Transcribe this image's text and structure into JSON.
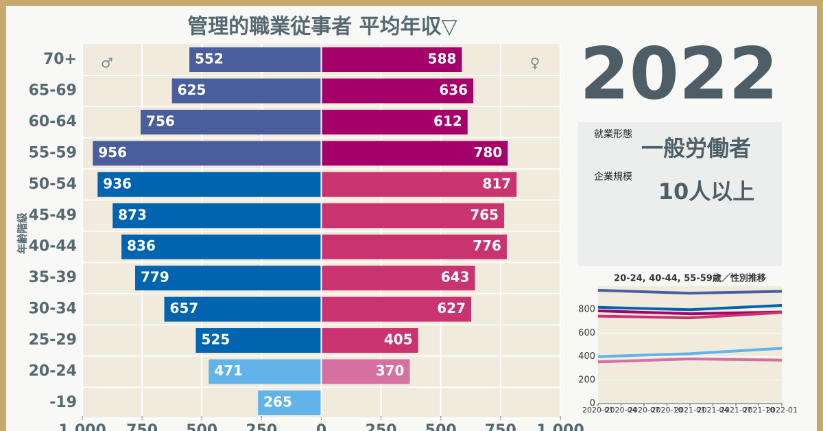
{
  "chart_data": [
    {
      "type": "bar",
      "title": "管理的職業従事者 平均年収▽",
      "ylabel": "年齢階級",
      "male_symbol": "♂",
      "female_symbol": "♀",
      "categories": [
        "70+",
        "65-69",
        "60-64",
        "55-59",
        "50-54",
        "45-49",
        "40-44",
        "35-39",
        "30-34",
        "25-29",
        "20-24",
        "-19"
      ],
      "series": [
        {
          "values": [
            -552,
            -625,
            -756,
            -956,
            -936,
            -873,
            -836,
            -779,
            -657,
            -525,
            -471,
            -265
          ],
          "value_labels": [
            "552",
            "625",
            "756",
            "956",
            "936",
            "873",
            "836",
            "779",
            "657",
            "525",
            "471",
            "265"
          ],
          "colors": [
            "#4a5e9e",
            "#4a5e9e",
            "#4a5e9e",
            "#4a5e9e",
            "#0064b0",
            "#0064b0",
            "#0064b0",
            "#0064b0",
            "#0064b0",
            "#0064b0",
            "#62b3ea",
            "#62b3ea"
          ]
        },
        {
          "values": [
            588,
            636,
            612,
            780,
            817,
            765,
            776,
            643,
            627,
            405,
            370,
            null
          ],
          "colors": [
            "#a5006a",
            "#a5006a",
            "#a5006a",
            "#a5006a",
            "#c93370",
            "#c93370",
            "#c93370",
            "#c93370",
            "#c93370",
            "#c93370",
            "#d670a0",
            "#d670a0"
          ]
        }
      ],
      "xlim": [
        -1000,
        1000
      ],
      "xticks": [
        {
          "value": -1000,
          "label": "1,000"
        },
        {
          "value": -750,
          "label": "750"
        },
        {
          "value": -500,
          "label": "500"
        },
        {
          "value": -250,
          "label": "250"
        },
        0,
        250,
        500,
        750,
        {
          "value": 1000,
          "label": "1,000"
        }
      ],
      "grid": true
    },
    {
      "type": "line",
      "title": "20-24, 40-44, 55-59歳／性別推移",
      "x": [
        "2020-01",
        "2021-01",
        "2022-01"
      ],
      "series": [
        {
          "color": "#4a5e9e",
          "values": [
            965,
            940,
            956
          ]
        },
        {
          "color": "#0064b0",
          "values": [
            820,
            800,
            836
          ]
        },
        {
          "color": "#a5006a",
          "values": [
            790,
            765,
            780
          ]
        },
        {
          "color": "#c93370",
          "values": [
            745,
            730,
            776
          ]
        },
        {
          "color": "#62b3ea",
          "values": [
            400,
            425,
            471
          ]
        },
        {
          "color": "#d670a0",
          "values": [
            355,
            380,
            370
          ]
        }
      ],
      "ylim": [
        0,
        1000
      ],
      "yticks": [
        0,
        200,
        400,
        600,
        800
      ],
      "xticks": [
        "2020-01",
        "2020-04",
        "2020-07",
        "2020-10",
        "2021-01",
        "2021-04",
        "2021-07",
        "2021-10",
        "2022-01"
      ]
    }
  ],
  "panel": {
    "year": "2022",
    "employment_label": "就業形態",
    "employment_value": "一般労働者",
    "size_label": "企業規模",
    "size_value": "10人以上"
  }
}
